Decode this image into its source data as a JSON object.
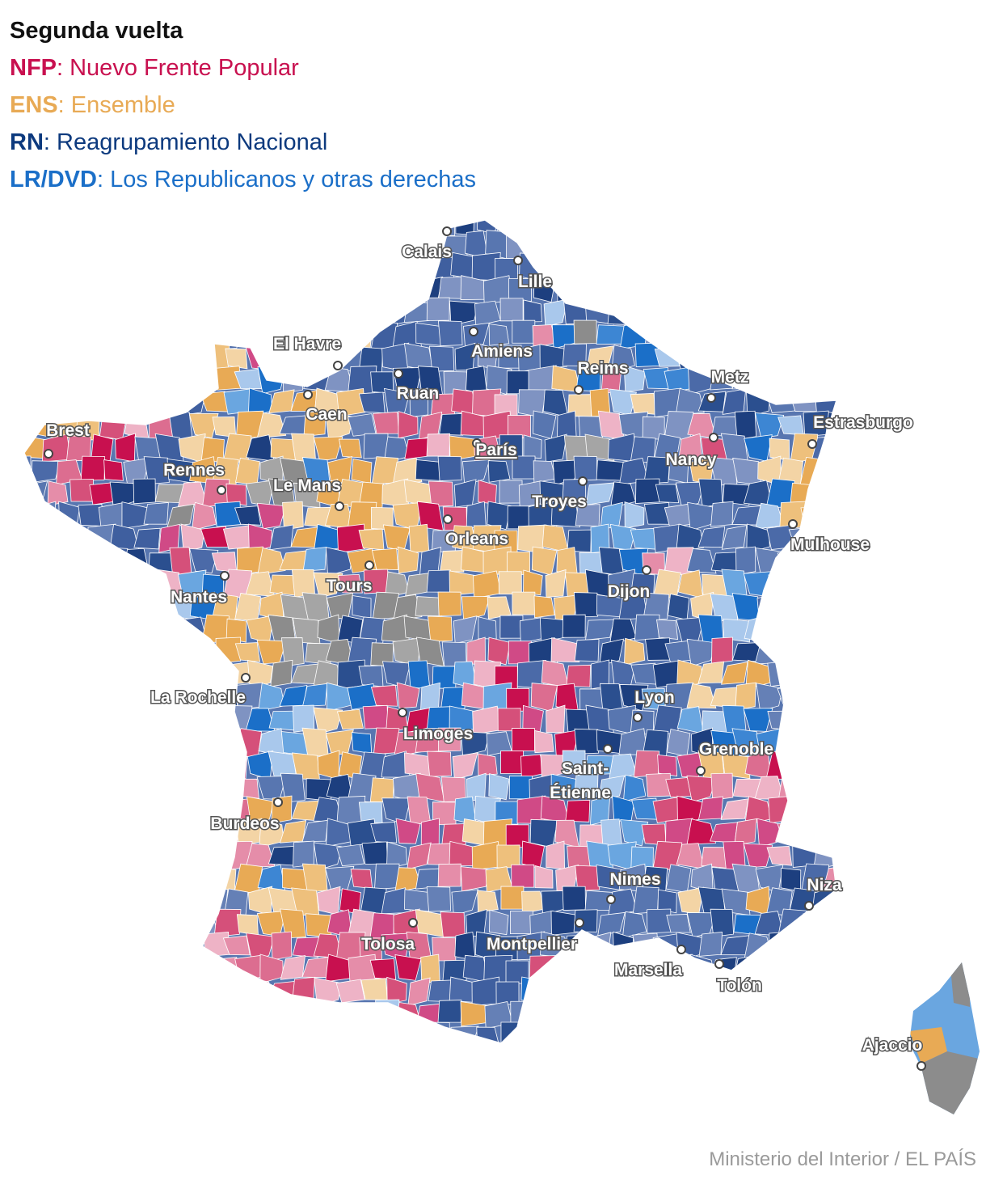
{
  "legend": {
    "title": "Segunda vuelta",
    "items": [
      {
        "abbr": "NFP",
        "label": ": Nuevo Frente Popular",
        "color": "#c8104f"
      },
      {
        "abbr": "ENS",
        "label": ": Ensemble",
        "color": "#e8aa55"
      },
      {
        "abbr": "RN",
        "label": ": Reagrupamiento Nacional",
        "color": "#0d3a7e"
      },
      {
        "abbr": "LR/DVD",
        "label": ": Los Republicanos y otras derechas",
        "color": "#1b6fc8"
      }
    ]
  },
  "palette": {
    "rn": [
      "#4b6aa8",
      "#5876b0",
      "#6580b6",
      "#3f5f9f",
      "#2b4f8f",
      "#1d3f7f",
      "#7f93c2"
    ],
    "nfp": [
      "#d5507a",
      "#dc6d90",
      "#e58da9",
      "#eeb3c6",
      "#c8104f",
      "#d04a86"
    ],
    "ens": [
      "#e8aa55",
      "#eec07c",
      "#f3d4a5"
    ],
    "lr": [
      "#1b6fc8",
      "#3d86d3",
      "#6aa6e0",
      "#a9c8ec"
    ],
    "other": [
      "#8c8c8c",
      "#a5a5a5"
    ]
  },
  "cities": [
    {
      "name": "Calais",
      "underline": false
    },
    {
      "name": "Lille",
      "underline": false
    },
    {
      "name": "Amiens",
      "underline": false
    },
    {
      "name": "El Havre",
      "underline": false
    },
    {
      "name": "Ruan",
      "underline": false
    },
    {
      "name": "Reims",
      "underline": false
    },
    {
      "name": "Metz",
      "underline": false
    },
    {
      "name": "Caen",
      "underline": false
    },
    {
      "name": "Estrasburgo",
      "underline": false
    },
    {
      "name": "Brest",
      "underline": false
    },
    {
      "name": "París",
      "underline": true
    },
    {
      "name": "Nancy",
      "underline": false
    },
    {
      "name": "Rennes",
      "underline": false
    },
    {
      "name": "Le Mans",
      "underline": false
    },
    {
      "name": "Troyes",
      "underline": false
    },
    {
      "name": "Orleans",
      "underline": false
    },
    {
      "name": "Mulhouse",
      "underline": false
    },
    {
      "name": "Tours",
      "underline": false
    },
    {
      "name": "Dijon",
      "underline": false
    },
    {
      "name": "Nantes",
      "underline": false
    },
    {
      "name": "La Rochelle",
      "underline": false
    },
    {
      "name": "Lyon",
      "underline": false
    },
    {
      "name": "Limoges",
      "underline": false
    },
    {
      "name": "Grenoble",
      "underline": false
    },
    {
      "name": "Saint-",
      "underline": false
    },
    {
      "name": "Étienne",
      "underline": false
    },
    {
      "name": "Burdeos",
      "underline": false
    },
    {
      "name": "Nimes",
      "underline": false
    },
    {
      "name": "Niza",
      "underline": false
    },
    {
      "name": "Tolosa",
      "underline": false
    },
    {
      "name": "Montpellier",
      "underline": false
    },
    {
      "name": "Marsella",
      "underline": false
    },
    {
      "name": "Tolón",
      "underline": false
    },
    {
      "name": "Ajaccio",
      "underline": false
    }
  ],
  "source": "Ministerio del Interior / EL PAÍS"
}
